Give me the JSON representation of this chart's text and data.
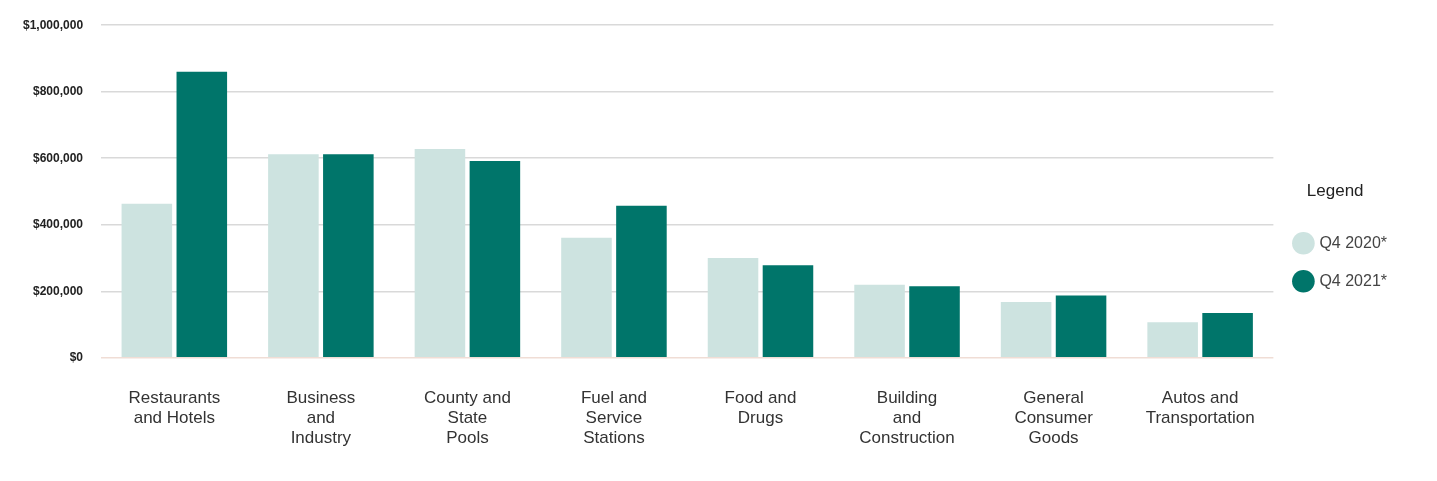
{
  "chart_data": {
    "type": "bar",
    "categories": [
      "Restaurants and Hotels",
      "Business and Industry",
      "County and State Pools",
      "Fuel and Service Stations",
      "Food and Drugs",
      "Building and Construction",
      "General Consumer Goods",
      "Autos and Transportation"
    ],
    "series": [
      {
        "name": "Q4 2020*",
        "color": "#cde3e0",
        "values": [
          463000,
          612000,
          628000,
          361000,
          300000,
          220000,
          168000,
          107000
        ]
      },
      {
        "name": "Q4 2021*",
        "color": "#00756a",
        "values": [
          860000,
          612000,
          592000,
          457000,
          278000,
          215000,
          187000,
          135000
        ]
      }
    ],
    "ylim": [
      0,
      1000000
    ],
    "yticks": [
      {
        "value": 0,
        "label": "$0"
      },
      {
        "value": 200000,
        "label": "$200,000"
      },
      {
        "value": 400000,
        "label": "$400,000"
      },
      {
        "value": 600000,
        "label": "$600,000"
      },
      {
        "value": 800000,
        "label": "$800,000"
      },
      {
        "value": 1000000,
        "label": "$1,000,000"
      }
    ],
    "grid": "y",
    "legend": "right",
    "legend_title": "Legend",
    "marker": "circle"
  }
}
